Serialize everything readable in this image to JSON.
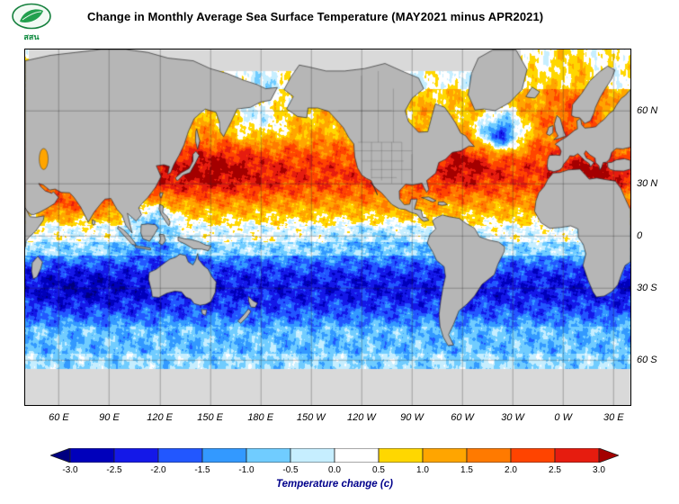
{
  "header": {
    "logo_text": "สสน",
    "title": "Change in Monthly Average Sea Surface Temperature (MAY2021 minus APR2021)"
  },
  "map": {
    "longitude_labels": [
      "60 E",
      "90 E",
      "120 E",
      "150 E",
      "180 E",
      "150 W",
      "120 W",
      "90 W",
      "60 W",
      "30 W",
      "0 W",
      "30 E"
    ],
    "latitude_labels": [
      "60 N",
      "30 N",
      "0",
      "30 S",
      "60 S"
    ],
    "land_color": "#b6b6b6",
    "coastline_color": "#2b2b2b",
    "grid_color": "#4a4a4a",
    "no_data_color": "#d9d9d9"
  },
  "colorbar": {
    "caption": "Temperature change  (c)",
    "caption_color": "#00008b",
    "tick_labels": [
      "-3.0",
      "-2.5",
      "-2.0",
      "-1.5",
      "-1.0",
      "-0.5",
      "0.0",
      "0.5",
      "1.0",
      "1.5",
      "2.0",
      "2.5",
      "3.0"
    ],
    "colors": [
      "#000080",
      "#0000bb",
      "#1418e8",
      "#2257ff",
      "#3399ff",
      "#70ccff",
      "#c6eeff",
      "#ffffff",
      "#ffd700",
      "#ffa500",
      "#ff7a00",
      "#ff4400",
      "#e61c0f",
      "#a40000"
    ]
  }
}
